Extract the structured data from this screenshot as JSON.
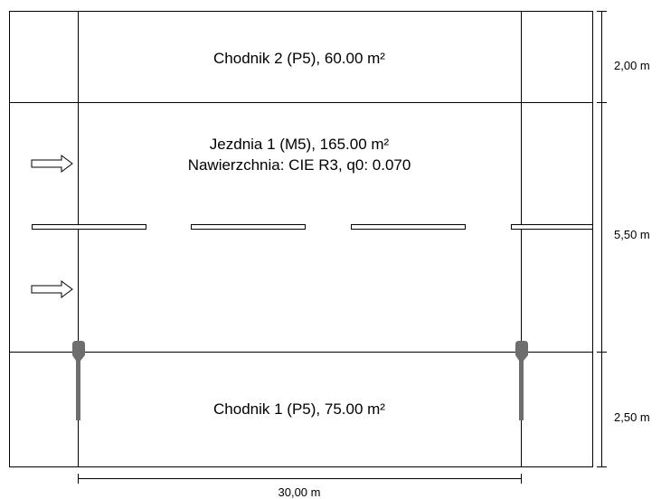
{
  "areas": {
    "sidewalk_top": {
      "label": "Chodnik 2 (P5), 60.00 m²"
    },
    "roadway": {
      "label": "Jezdnia 1 (M5), 165.00 m²",
      "surface": "Nawierzchnia: CIE R3, q0: 0.070"
    },
    "sidewalk_bottom": {
      "label": "Chodnik 1 (P5), 75.00 m²"
    }
  },
  "dimensions": {
    "top_width": "2,00 m",
    "road_width": "5,50 m",
    "bottom_width": "2,50 m",
    "length": "30,00 m"
  },
  "traffic_direction": "right",
  "lane_markings": "dashed",
  "luminaires": 2
}
